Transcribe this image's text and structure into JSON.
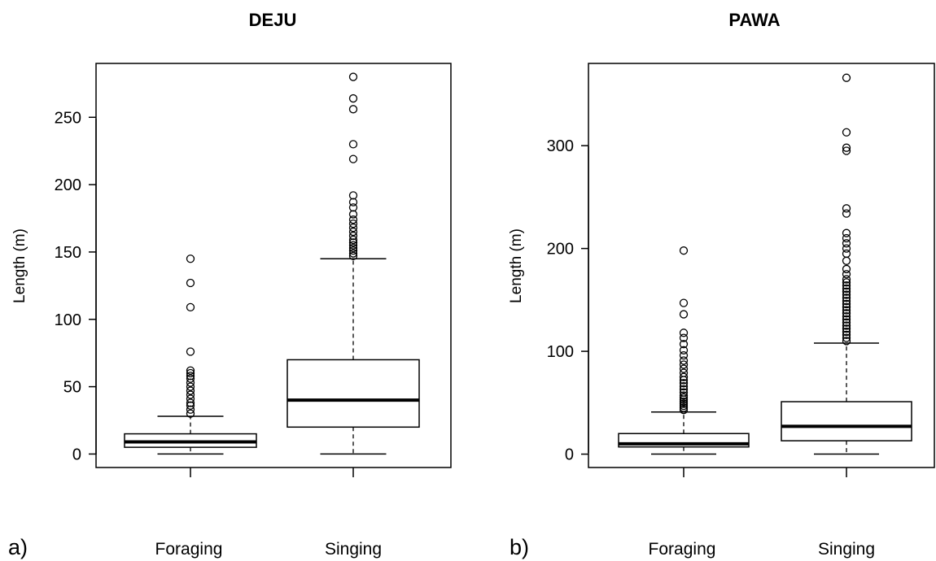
{
  "panels": [
    {
      "panel_label": "a)",
      "title": "DEJU",
      "ylabel": "Length (m)",
      "yticks": [
        0,
        50,
        100,
        150,
        200,
        250
      ],
      "ylim": [
        -10,
        290
      ],
      "categories": [
        "Foraging",
        "Singing"
      ],
      "boxes": [
        {
          "name": "Foraging",
          "min": 0,
          "q1": 5,
          "median": 9,
          "q3": 15,
          "max": 28,
          "outliers": [
            30,
            33,
            36,
            38,
            41,
            44,
            47,
            50,
            53,
            56,
            58,
            60,
            62,
            76,
            109,
            127,
            145
          ]
        },
        {
          "name": "Singing",
          "min": 0,
          "q1": 20,
          "median": 40,
          "q3": 70,
          "max": 145,
          "outliers": [
            147,
            149,
            151,
            153,
            155,
            157,
            159,
            162,
            165,
            168,
            171,
            174,
            178,
            183,
            187,
            192,
            219,
            230,
            256,
            264,
            280
          ]
        }
      ]
    },
    {
      "panel_label": "b)",
      "title": "PAWA",
      "ylabel": "Length (m)",
      "yticks": [
        0,
        100,
        200,
        300
      ],
      "ylim": [
        -13,
        380
      ],
      "categories": [
        "Foraging",
        "Singing"
      ],
      "boxes": [
        {
          "name": "Foraging",
          "min": 0,
          "q1": 7,
          "median": 10,
          "q3": 20,
          "max": 41,
          "outliers": [
            43,
            45,
            47,
            49,
            51,
            53,
            55,
            57,
            60,
            63,
            66,
            69,
            72,
            75,
            79,
            83,
            87,
            91,
            96,
            101,
            107,
            113,
            118,
            136,
            147,
            198
          ]
        },
        {
          "name": "Singing",
          "min": 0,
          "q1": 13,
          "median": 27,
          "q3": 51,
          "max": 108,
          "outliers": [
            110,
            113,
            116,
            119,
            122,
            125,
            128,
            131,
            134,
            137,
            140,
            143,
            146,
            149,
            152,
            155,
            158,
            161,
            164,
            167,
            170,
            175,
            180,
            188,
            195,
            200,
            205,
            210,
            215,
            234,
            239,
            295,
            298,
            313,
            366
          ]
        }
      ]
    }
  ],
  "chart_data": [
    {
      "type": "box",
      "title": "DEJU",
      "ylabel": "Length (m)",
      "ylim": [
        -10,
        290
      ],
      "categories": [
        "Foraging",
        "Singing"
      ],
      "series": [
        {
          "name": "Foraging",
          "min": 0,
          "q1": 5,
          "median": 9,
          "q3": 15,
          "max": 28
        },
        {
          "name": "Singing",
          "min": 0,
          "q1": 20,
          "median": 40,
          "q3": 70,
          "max": 145
        }
      ]
    },
    {
      "type": "box",
      "title": "PAWA",
      "ylabel": "Length (m)",
      "ylim": [
        -13,
        380
      ],
      "categories": [
        "Foraging",
        "Singing"
      ],
      "series": [
        {
          "name": "Foraging",
          "min": 0,
          "q1": 7,
          "median": 10,
          "q3": 20,
          "max": 41
        },
        {
          "name": "Singing",
          "min": 0,
          "q1": 13,
          "median": 27,
          "q3": 51,
          "max": 108
        }
      ]
    }
  ]
}
